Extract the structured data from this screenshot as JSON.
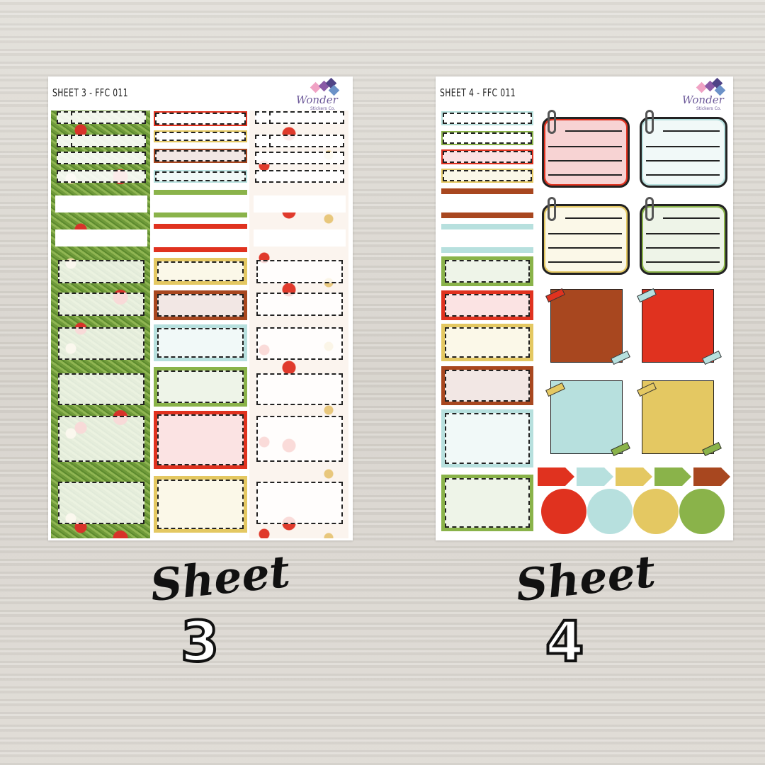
{
  "sheets": [
    {
      "title": "SHEET 3 - FFC 011",
      "caption": "Sheet",
      "number": "3"
    },
    {
      "title": "SHEET 4 - FFC 011",
      "caption": "Sheet",
      "number": "4"
    }
  ],
  "logo": {
    "word": "Wonder",
    "sub": "Stickers Co."
  },
  "colors": {
    "red": "#e0321f",
    "yellow": "#e4c862",
    "brown": "#a8471f",
    "teal": "#b7e0de",
    "green": "#8ab34a",
    "black": "#222222"
  }
}
